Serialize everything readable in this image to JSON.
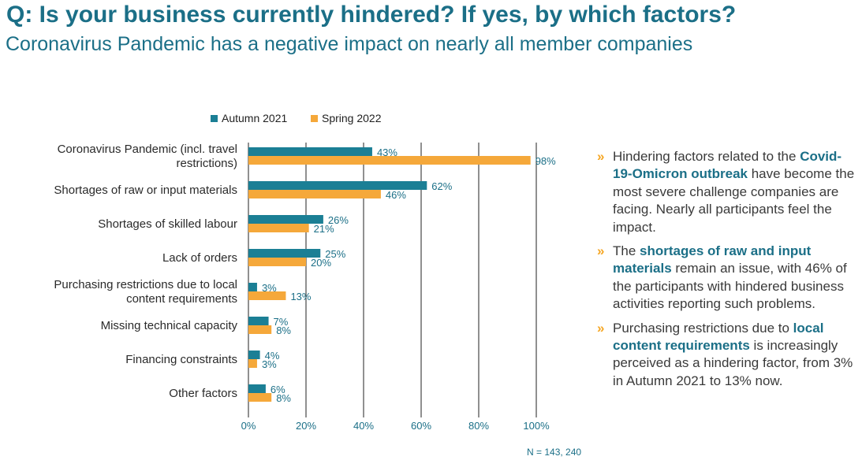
{
  "header": {
    "title": "Q: Is your business currently hindered? If yes, by which factors?",
    "subtitle": "Coronavirus Pandemic has a negative impact on nearly all member companies"
  },
  "colors": {
    "autumn": "#1b7f95",
    "spring": "#f5a83a",
    "title": "#1b6f87",
    "bullet_mark": "#f5a623",
    "grid": "#222222"
  },
  "chart_data": {
    "type": "bar",
    "orientation": "horizontal",
    "title": "",
    "xlabel": "",
    "ylabel": "",
    "xlim": [
      0,
      100
    ],
    "x_ticks": [
      0,
      20,
      40,
      60,
      80,
      100
    ],
    "x_tick_labels": [
      "0%",
      "20%",
      "40%",
      "60%",
      "80%",
      "100%"
    ],
    "grid": true,
    "legend_position": "top",
    "categories": [
      [
        "Coronavirus Pandemic (incl. travel",
        "restrictions)"
      ],
      [
        "Shortages of raw or input materials"
      ],
      [
        "Shortages of skilled labour"
      ],
      [
        "Lack of orders"
      ],
      [
        "Purchasing restrictions due to local",
        "content requirements"
      ],
      [
        "Missing technical capacity"
      ],
      [
        "Financing constraints"
      ],
      [
        "Other factors"
      ]
    ],
    "series": [
      {
        "name": "Autumn 2021",
        "values": [
          43,
          62,
          26,
          25,
          3,
          7,
          4,
          6
        ],
        "labels": [
          "43%",
          "62%",
          "26%",
          "25%",
          "3%",
          "7%",
          "4%",
          "6%"
        ]
      },
      {
        "name": "Spring 2022",
        "values": [
          98,
          46,
          21,
          20,
          13,
          8,
          3,
          8
        ],
        "labels": [
          "98%",
          "46%",
          "21%",
          "20%",
          "13%",
          "8%",
          "3%",
          "8%"
        ]
      }
    ]
  },
  "bullets": [
    {
      "mark": "»",
      "parts": [
        {
          "text": "Hindering factors related to the ",
          "bold": false
        },
        {
          "text": "Covid-19-Omicron outbreak",
          "bold": true
        },
        {
          "text": " have become the most severe challenge companies are facing. Nearly all participants feel the impact.",
          "bold": false
        }
      ]
    },
    {
      "mark": "»",
      "parts": [
        {
          "text": "The ",
          "bold": false
        },
        {
          "text": "shortages of raw and input materials",
          "bold": true
        },
        {
          "text": " remain an issue, with 46% of the participants with hindered business activities reporting such problems.",
          "bold": false
        }
      ]
    },
    {
      "mark": "»",
      "parts": [
        {
          "text": "Purchasing restrictions due to ",
          "bold": false
        },
        {
          "text": "local content requirements",
          "bold": true
        },
        {
          "text": " is increasingly perceived as a hindering factor, from 3% in Autumn 2021 to 13% now.",
          "bold": false
        }
      ]
    }
  ],
  "footnote": "N = 143, 240"
}
